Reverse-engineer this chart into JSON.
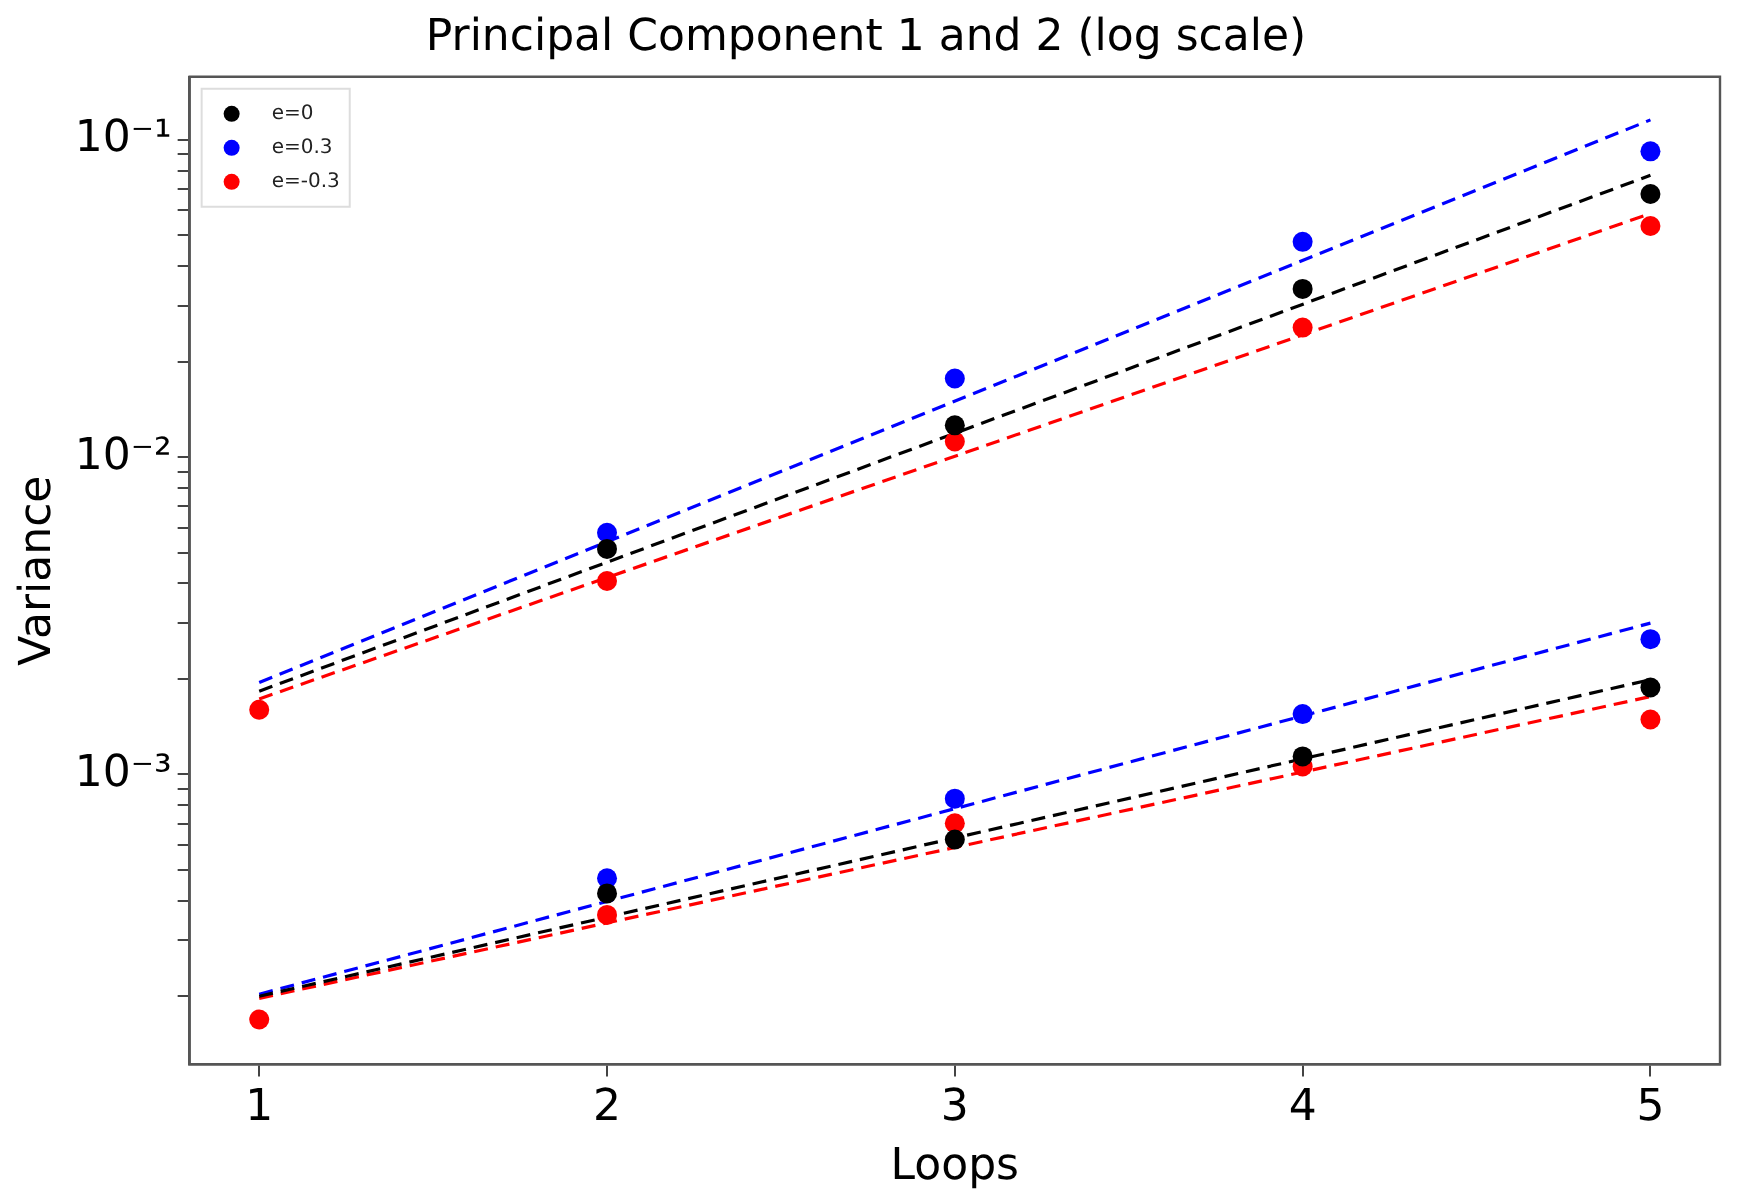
{
  "chart_data": {
    "type": "scatter",
    "title": "Principal Component 1 and 2 (log scale)",
    "xlabel": "Loops",
    "ylabel": "Variance",
    "log": "y",
    "grid": false,
    "legend": "top left",
    "xlim": [
      0.8,
      5.2
    ],
    "xticks": [
      1,
      2,
      3,
      4,
      5
    ],
    "ylim": [
      0.000122,
      0.158
    ],
    "yticks": [
      {
        "value": 0.0002,
        "label": null
      },
      {
        "value": 0.0003,
        "label": null
      },
      {
        "value": 0.0004,
        "label": null
      },
      {
        "value": 0.0005,
        "label": null
      },
      {
        "value": 0.0006,
        "label": null
      },
      {
        "value": 0.0007,
        "label": null
      },
      {
        "value": 0.0008,
        "label": null
      },
      {
        "value": 0.0009,
        "label": null
      },
      {
        "value": 0.001,
        "label": "10⁻³"
      },
      {
        "value": 0.002,
        "label": null
      },
      {
        "value": 0.003,
        "label": null
      },
      {
        "value": 0.004,
        "label": null
      },
      {
        "value": 0.005,
        "label": null
      },
      {
        "value": 0.006,
        "label": null
      },
      {
        "value": 0.007,
        "label": null
      },
      {
        "value": 0.008,
        "label": null
      },
      {
        "value": 0.009,
        "label": null
      },
      {
        "value": 0.01,
        "label": "10⁻²"
      },
      {
        "value": 0.02,
        "label": null
      },
      {
        "value": 0.03,
        "label": null
      },
      {
        "value": 0.04,
        "label": null
      },
      {
        "value": 0.05,
        "label": null
      },
      {
        "value": 0.06,
        "label": null
      },
      {
        "value": 0.07,
        "label": null
      },
      {
        "value": 0.08,
        "label": null
      },
      {
        "value": 0.09,
        "label": null
      },
      {
        "value": 0.1,
        "label": "10⁻¹"
      }
    ],
    "series": [
      {
        "name": "e=0",
        "type": "scatter",
        "marker": "circle",
        "color": "#000000",
        "x": [
          2,
          3,
          4,
          5,
          2,
          3,
          4,
          5
        ],
        "values": [
          0.00514,
          0.0126,
          0.0339,
          0.0675,
          0.000422,
          0.000624,
          0.00114,
          0.00188
        ]
      },
      {
        "name": "e=0.3",
        "type": "scatter",
        "marker": "circle",
        "color": "#0000ff",
        "x": [
          2,
          3,
          4,
          5,
          2,
          3,
          4,
          5
        ],
        "values": [
          0.00578,
          0.0177,
          0.0477,
          0.092,
          0.000471,
          0.000839,
          0.00155,
          0.00267
        ]
      },
      {
        "name": "e=-0.3",
        "type": "scatter",
        "marker": "circle",
        "color": "#ff0000",
        "x": [
          1,
          2,
          3,
          4,
          5,
          1,
          2,
          3,
          4,
          5
        ],
        "values": [
          0.0016,
          0.00407,
          0.0112,
          0.0256,
          0.0535,
          0.000169,
          0.000361,
          0.000702,
          0.00106,
          0.00149
        ]
      },
      {
        "type": "line",
        "marker": "none",
        "line_style": "dashed",
        "color": "#000000",
        "x": [
          1,
          5
        ],
        "values": [
          0.00183,
          0.0773
        ]
      },
      {
        "type": "line",
        "marker": "none",
        "line_style": "dashed",
        "color": "#0000ff",
        "x": [
          1,
          5
        ],
        "values": [
          0.00195,
          0.1156
        ]
      },
      {
        "type": "line",
        "marker": "none",
        "line_style": "dashed",
        "color": "#ff0000",
        "x": [
          1,
          5
        ],
        "values": [
          0.00173,
          0.0586
        ]
      },
      {
        "type": "line",
        "marker": "none",
        "line_style": "dashed",
        "color": "#000000",
        "x": [
          1,
          5
        ],
        "values": [
          0.0002,
          0.00199
        ]
      },
      {
        "type": "line",
        "marker": "none",
        "line_style": "dashed",
        "color": "#0000ff",
        "x": [
          1,
          5
        ],
        "values": [
          0.000203,
          0.003
        ]
      },
      {
        "type": "line",
        "marker": "none",
        "line_style": "dashed",
        "color": "#ff0000",
        "x": [
          1,
          5
        ],
        "values": [
          0.000197,
          0.00176
        ]
      }
    ]
  }
}
